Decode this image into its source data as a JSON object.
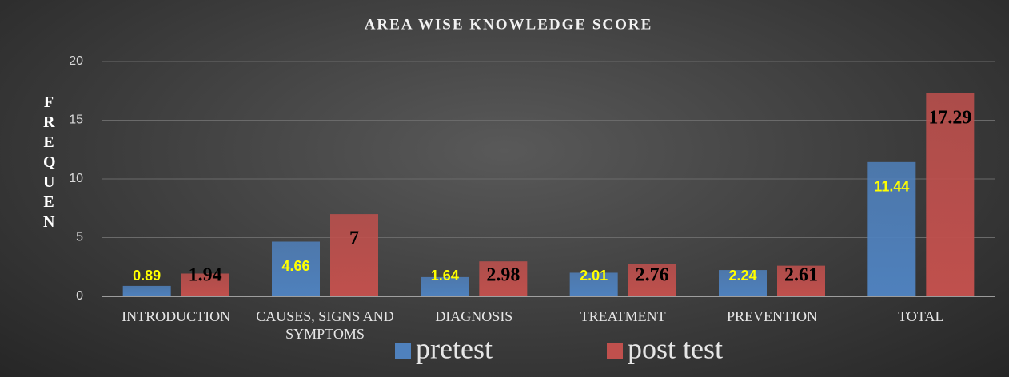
{
  "chart_data": {
    "type": "bar",
    "title": "AREA WISE KNOWLEDGE SCORE",
    "y_label": "FREQUEN",
    "categories": [
      "INTRODUCTION",
      "CAUSES, SIGNS AND SYMPTOMS",
      "DIAGNOSIS",
      "TREATMENT",
      "PREVENTION",
      "TOTAL"
    ],
    "series": [
      {
        "name": "pretest",
        "color": "#4f81bd",
        "label_color": "#ffff00",
        "values": [
          0.89,
          4.66,
          1.64,
          2.01,
          2.24,
          11.44
        ]
      },
      {
        "name": "post test",
        "color": "#c0504d",
        "label_color": "#000000",
        "values": [
          1.94,
          7,
          2.98,
          2.76,
          2.61,
          17.29
        ]
      }
    ],
    "ylim": [
      0,
      20
    ],
    "yticks": [
      0,
      5,
      10,
      15,
      20
    ],
    "grid": true,
    "legend": "bottom"
  }
}
